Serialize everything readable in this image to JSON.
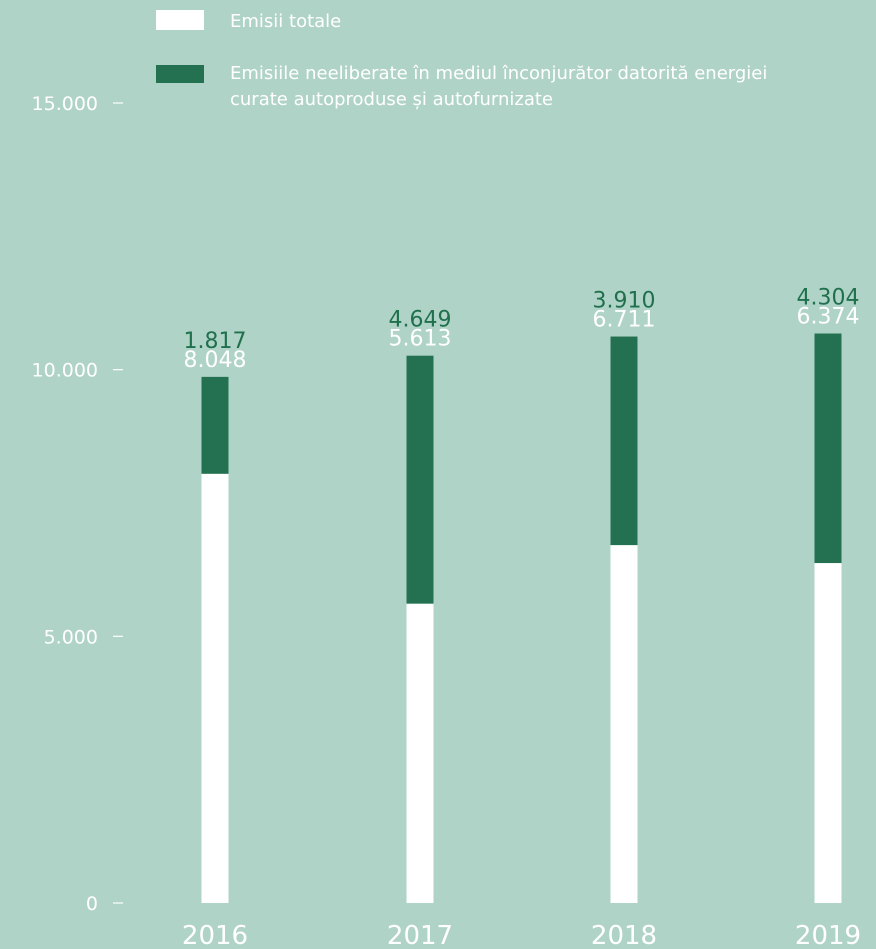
{
  "chart_data": {
    "type": "bar",
    "stacked": true,
    "categories": [
      "2016",
      "2017",
      "2018",
      "2019"
    ],
    "series": [
      {
        "name": "Emisii totale",
        "values": [
          8048,
          5613,
          6711,
          6374
        ],
        "labels": [
          "8.048",
          "5.613",
          "6.711",
          "6.374"
        ],
        "color": "#ffffff"
      },
      {
        "name": "Emisiile neeliberate în mediul înconjurător datorită energiei curate autoproduse și autofurnizate",
        "values": [
          1817,
          4649,
          3910,
          4304
        ],
        "labels": [
          "1.817",
          "4.649",
          "3.910",
          "4.304"
        ],
        "color": "#237150"
      }
    ],
    "ylim": [
      0,
      15000
    ],
    "y_ticks": [
      0,
      5000,
      10000,
      15000
    ],
    "y_tick_labels": [
      "0",
      "5.000",
      "10.000",
      "15.000"
    ],
    "grid": false,
    "legend_position": "top"
  },
  "legend": {
    "item1_label": "Emisii totale",
    "item2_line1": "Emisiile neeliberate în mediul înconjurător datorită energiei",
    "item2_line2": "curate autoproduse și autofurnizate"
  },
  "colors": {
    "background": "#b0d3c8",
    "label_green": "#20704d"
  }
}
